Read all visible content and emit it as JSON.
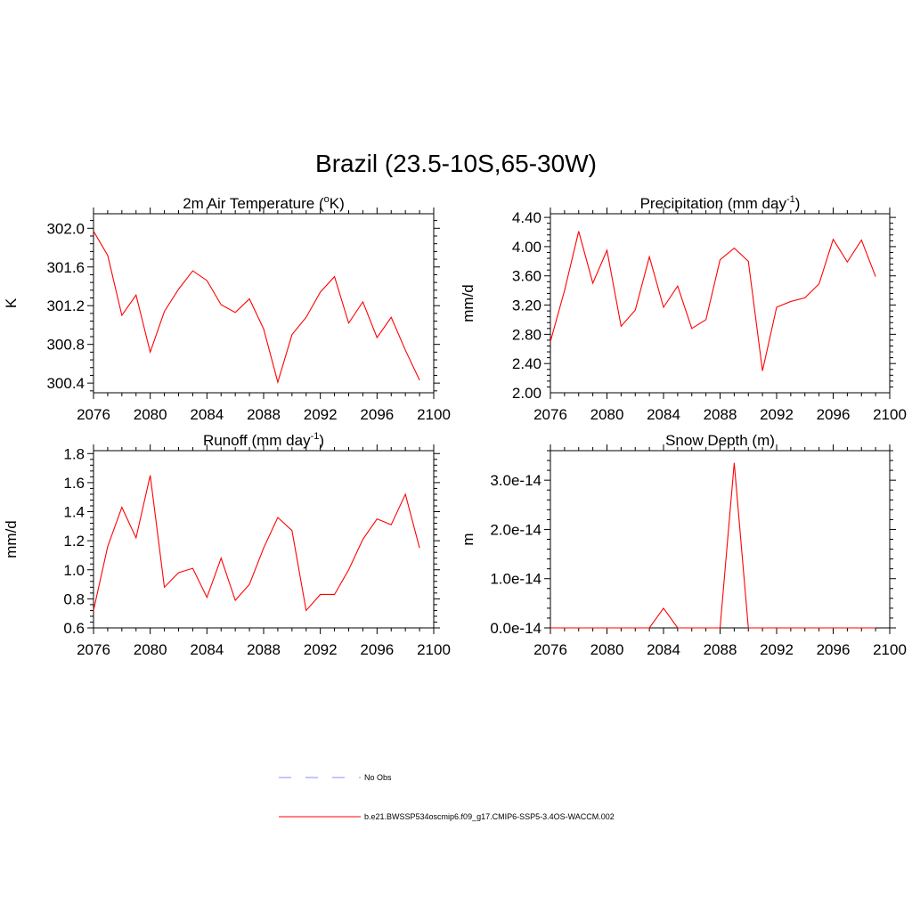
{
  "figure_title": "Brazil (23.5-10S,65-30W)",
  "colors": {
    "model": "#ff0000",
    "obs": "#a0a0ff",
    "axis": "#000000"
  },
  "legend": {
    "obs_label": "No Obs",
    "model_label": "b.e21.BWSSP534oscmip6.f09_g17.CMIP6-SSP5-3.4OS-WACCM.002"
  },
  "chart_data": [
    {
      "type": "line",
      "title": "2m Air Temperature (",
      "title_sup": "o",
      "title_tail": "K)",
      "xlabel": "",
      "ylabel": "K",
      "xlim": [
        2076,
        2100
      ],
      "ylim": [
        300.3,
        302.15
      ],
      "xticks": [
        "2076",
        "2080",
        "2084",
        "2088",
        "2092",
        "2096",
        "2100"
      ],
      "yticks": [
        "300.4",
        "300.8",
        "301.2",
        "301.6",
        "302.0"
      ],
      "x": [
        2076,
        2077,
        2078,
        2079,
        2080,
        2081,
        2082,
        2083,
        2084,
        2085,
        2086,
        2087,
        2088,
        2089,
        2090,
        2091,
        2092,
        2093,
        2094,
        2095,
        2096,
        2097,
        2098,
        2099
      ],
      "series": [
        {
          "name": "b.e21.BWSSP534oscmip6.f09_g17.CMIP6-SSP5-3.4OS-WACCM.002",
          "values": [
            301.97,
            301.72,
            301.1,
            301.31,
            300.72,
            301.14,
            301.37,
            301.56,
            301.46,
            301.21,
            301.13,
            301.27,
            300.96,
            300.41,
            300.9,
            301.08,
            301.34,
            301.5,
            301.02,
            301.24,
            300.87,
            301.08,
            300.74,
            300.43
          ]
        }
      ]
    },
    {
      "type": "line",
      "title": "Precipitation (mm day",
      "title_sup": "-1",
      "title_tail": ")",
      "xlabel": "",
      "ylabel": "mm/d",
      "xlim": [
        2076,
        2100
      ],
      "ylim": [
        2.0,
        4.45
      ],
      "xticks": [
        "2076",
        "2080",
        "2084",
        "2088",
        "2092",
        "2096",
        "2100"
      ],
      "yticks": [
        "2.00",
        "2.40",
        "2.80",
        "3.20",
        "3.60",
        "4.00",
        "4.40"
      ],
      "x": [
        2076,
        2077,
        2078,
        2079,
        2080,
        2081,
        2082,
        2083,
        2084,
        2085,
        2086,
        2087,
        2088,
        2089,
        2090,
        2091,
        2092,
        2093,
        2094,
        2095,
        2096,
        2097,
        2098,
        2099
      ],
      "series": [
        {
          "name": "b.e21.BWSSP534oscmip6.f09_g17.CMIP6-SSP5-3.4OS-WACCM.002",
          "values": [
            2.7,
            3.4,
            4.21,
            3.5,
            3.95,
            2.91,
            3.13,
            3.86,
            3.17,
            3.46,
            2.88,
            3.0,
            3.82,
            3.98,
            3.8,
            2.3,
            3.17,
            3.25,
            3.3,
            3.49,
            4.1,
            3.79,
            4.09,
            3.59
          ]
        }
      ]
    },
    {
      "type": "line",
      "title": "Runoff (mm day",
      "title_sup": "-1",
      "title_tail": ")",
      "xlabel": "",
      "ylabel": "mm/d",
      "xlim": [
        2076,
        2100
      ],
      "ylim": [
        0.6,
        1.82
      ],
      "xticks": [
        "2076",
        "2080",
        "2084",
        "2088",
        "2092",
        "2096",
        "2100"
      ],
      "yticks": [
        "0.6",
        "0.8",
        "1.0",
        "1.2",
        "1.4",
        "1.6",
        "1.8"
      ],
      "x": [
        2076,
        2077,
        2078,
        2079,
        2080,
        2081,
        2082,
        2083,
        2084,
        2085,
        2086,
        2087,
        2088,
        2089,
        2090,
        2091,
        2092,
        2093,
        2094,
        2095,
        2096,
        2097,
        2098,
        2099
      ],
      "series": [
        {
          "name": "b.e21.BWSSP534oscmip6.f09_g17.CMIP6-SSP5-3.4OS-WACCM.002",
          "values": [
            0.72,
            1.16,
            1.43,
            1.22,
            1.65,
            0.88,
            0.98,
            1.01,
            0.81,
            1.08,
            0.79,
            0.9,
            1.15,
            1.36,
            1.27,
            0.72,
            0.83,
            0.83,
            1.0,
            1.21,
            1.35,
            1.31,
            1.52,
            1.15
          ]
        }
      ]
    },
    {
      "type": "line",
      "title": "Snow Depth (m)",
      "title_sup": "",
      "title_tail": "",
      "xlabel": "",
      "ylabel": "m",
      "xlim": [
        2076,
        2100
      ],
      "ylim": [
        0,
        3.6e-14
      ],
      "xticks": [
        "2076",
        "2080",
        "2084",
        "2088",
        "2092",
        "2096",
        "2100"
      ],
      "yticks": [
        "0.0e-14",
        "1.0e-14",
        "2.0e-14",
        "3.0e-14"
      ],
      "x": [
        2076,
        2077,
        2078,
        2079,
        2080,
        2081,
        2082,
        2083,
        2084,
        2085,
        2086,
        2087,
        2088,
        2089,
        2090,
        2091,
        2092,
        2093,
        2094,
        2095,
        2096,
        2097,
        2098,
        2099
      ],
      "series": [
        {
          "name": "b.e21.BWSSP534oscmip6.f09_g17.CMIP6-SSP5-3.4OS-WACCM.002",
          "values": [
            0,
            0,
            0,
            0,
            0,
            0,
            0,
            0,
            4e-15,
            0,
            0,
            0,
            0,
            3.35e-14,
            0,
            0,
            0,
            0,
            0,
            0,
            0,
            0,
            0,
            0
          ]
        }
      ]
    }
  ]
}
